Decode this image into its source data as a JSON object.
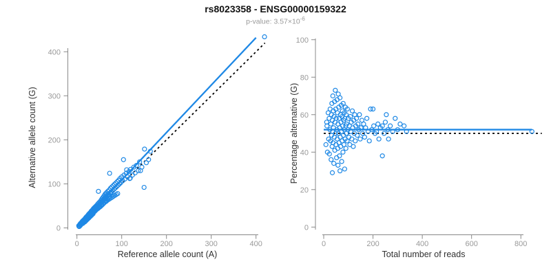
{
  "header": {
    "title": "rs8023358 - ENSG00000159322",
    "p_label": "p-value:",
    "p_mantissa": "3.57×10",
    "p_exponent": "-6"
  },
  "colors": {
    "accent_blue": "#1E88E5",
    "dash_black": "#000000",
    "axis_gray": "#888888",
    "tick_text": "#999999",
    "label_text": "#303030",
    "title_text": "#111111",
    "subtitle_text": "#9a9a9a"
  },
  "chart_data": [
    {
      "id": "left",
      "type": "scatter",
      "xlabel": "Reference allele count (A)",
      "ylabel": "Alternative allele count (G)",
      "xlim": [
        0,
        420
      ],
      "ylim": [
        0,
        435
      ],
      "xticks": [
        0,
        100,
        200,
        300,
        400
      ],
      "yticks": [
        0,
        100,
        200,
        300,
        400
      ],
      "grid": false,
      "marker": "open-circle",
      "legend": "none",
      "lines": [
        {
          "name": "regression-fit",
          "from": [
            0,
            1
          ],
          "to": [
            400,
            432
          ],
          "style": "solid",
          "color": "accent"
        },
        {
          "name": "identity-line",
          "from": [
            4,
            4
          ],
          "to": [
            420,
            420
          ],
          "style": "dashed",
          "color": "black"
        }
      ],
      "points": [
        [
          4,
          5
        ],
        [
          5,
          3
        ],
        [
          6,
          7
        ],
        [
          6,
          4
        ],
        [
          7,
          9
        ],
        [
          8,
          6
        ],
        [
          8,
          10
        ],
        [
          9,
          8
        ],
        [
          9,
          11
        ],
        [
          10,
          12
        ],
        [
          10,
          9
        ],
        [
          11,
          13
        ],
        [
          11,
          12
        ],
        [
          12,
          11
        ],
        [
          12,
          15
        ],
        [
          13,
          10
        ],
        [
          13,
          14
        ],
        [
          14,
          13
        ],
        [
          14,
          17
        ],
        [
          14,
          12
        ],
        [
          15,
          12
        ],
        [
          15,
          16
        ],
        [
          16,
          18
        ],
        [
          16,
          13
        ],
        [
          16,
          15
        ],
        [
          17,
          15
        ],
        [
          17,
          20
        ],
        [
          18,
          14
        ],
        [
          18,
          19
        ],
        [
          19,
          22
        ],
        [
          19,
          16
        ],
        [
          19,
          20
        ],
        [
          20,
          18
        ],
        [
          20,
          24
        ],
        [
          21,
          17
        ],
        [
          21,
          23
        ],
        [
          21,
          21
        ],
        [
          22,
          25
        ],
        [
          22,
          19
        ],
        [
          23,
          21
        ],
        [
          23,
          27
        ],
        [
          23,
          24
        ],
        [
          24,
          20
        ],
        [
          24,
          26
        ],
        [
          25,
          29
        ],
        [
          25,
          22
        ],
        [
          26,
          24
        ],
        [
          26,
          31
        ],
        [
          26,
          27
        ],
        [
          27,
          23
        ],
        [
          27,
          30
        ],
        [
          28,
          33
        ],
        [
          28,
          25
        ],
        [
          28,
          29
        ],
        [
          29,
          27
        ],
        [
          29,
          34
        ],
        [
          30,
          26
        ],
        [
          30,
          32
        ],
        [
          31,
          36
        ],
        [
          31,
          28
        ],
        [
          31,
          33
        ],
        [
          32,
          30
        ],
        [
          32,
          38
        ],
        [
          33,
          29
        ],
        [
          33,
          35
        ],
        [
          33,
          34
        ],
        [
          34,
          40
        ],
        [
          34,
          31
        ],
        [
          35,
          33
        ],
        [
          35,
          41
        ],
        [
          36,
          38
        ],
        [
          36,
          32
        ],
        [
          36,
          37
        ],
        [
          37,
          44
        ],
        [
          37,
          35
        ],
        [
          38,
          36
        ],
        [
          38,
          42
        ],
        [
          38,
          40
        ],
        [
          39,
          46
        ],
        [
          39,
          37
        ],
        [
          40,
          38
        ],
        [
          40,
          45
        ],
        [
          41,
          48
        ],
        [
          41,
          39
        ],
        [
          41,
          43
        ],
        [
          42,
          44
        ],
        [
          42,
          40
        ],
        [
          43,
          50
        ],
        [
          43,
          41
        ],
        [
          44,
          47
        ],
        [
          44,
          42
        ],
        [
          44,
          46
        ],
        [
          45,
          52
        ],
        [
          45,
          43
        ],
        [
          46,
          49
        ],
        [
          46,
          47
        ],
        [
          47,
          55
        ],
        [
          47,
          44
        ],
        [
          48,
          51
        ],
        [
          48,
          83
        ],
        [
          49,
          46
        ],
        [
          49,
          52
        ],
        [
          50,
          58
        ],
        [
          50,
          47
        ],
        [
          51,
          54
        ],
        [
          51,
          50
        ],
        [
          52,
          60
        ],
        [
          52,
          48
        ],
        [
          53,
          56
        ],
        [
          53,
          57
        ],
        [
          54,
          63
        ],
        [
          54,
          50
        ],
        [
          55,
          58
        ],
        [
          55,
          53
        ],
        [
          56,
          66
        ],
        [
          56,
          52
        ],
        [
          57,
          60
        ],
        [
          57,
          62
        ],
        [
          58,
          69
        ],
        [
          58,
          54
        ],
        [
          59,
          62
        ],
        [
          59,
          57
        ],
        [
          60,
          72
        ],
        [
          60,
          56
        ],
        [
          61,
          64
        ],
        [
          61,
          66
        ],
        [
          62,
          75
        ],
        [
          62,
          58
        ],
        [
          63,
          67
        ],
        [
          63,
          61
        ],
        [
          64,
          78
        ],
        [
          65,
          60
        ],
        [
          65,
          70
        ],
        [
          66,
          80
        ],
        [
          66,
          71
        ],
        [
          67,
          62
        ],
        [
          68,
          73
        ],
        [
          68,
          65
        ],
        [
          69,
          83
        ],
        [
          70,
          64
        ],
        [
          70,
          75
        ],
        [
          71,
          76
        ],
        [
          72,
          86
        ],
        [
          72,
          70
        ],
        [
          73,
          124
        ],
        [
          73,
          66
        ],
        [
          74,
          79
        ],
        [
          75,
          90
        ],
        [
          75,
          80
        ],
        [
          76,
          68
        ],
        [
          77,
          82
        ],
        [
          78,
          93
        ],
        [
          79,
          70
        ],
        [
          80,
          85
        ],
        [
          81,
          96
        ],
        [
          82,
          72
        ],
        [
          83,
          88
        ],
        [
          84,
          99
        ],
        [
          85,
          74
        ],
        [
          86,
          91
        ],
        [
          87,
          102
        ],
        [
          88,
          76
        ],
        [
          89,
          94
        ],
        [
          90,
          105
        ],
        [
          91,
          78
        ],
        [
          92,
          97
        ],
        [
          93,
          108
        ],
        [
          95,
          100
        ],
        [
          96,
          112
        ],
        [
          98,
          103
        ],
        [
          100,
          116
        ],
        [
          102,
          107
        ],
        [
          104,
          155
        ],
        [
          105,
          120
        ],
        [
          107,
          111
        ],
        [
          110,
          124
        ],
        [
          111,
          132
        ],
        [
          113,
          116
        ],
        [
          116,
          128
        ],
        [
          118,
          112
        ],
        [
          119,
          113
        ],
        [
          120,
          133
        ],
        [
          124,
          120
        ],
        [
          127,
          138
        ],
        [
          130,
          125
        ],
        [
          133,
          142
        ],
        [
          137,
          130
        ],
        [
          140,
          150
        ],
        [
          142,
          130
        ],
        [
          145,
          138
        ],
        [
          150,
          92
        ],
        [
          151,
          179
        ],
        [
          155,
          148
        ],
        [
          160,
          155
        ],
        [
          164,
          174
        ],
        [
          419,
          434
        ]
      ]
    },
    {
      "id": "right",
      "type": "scatter",
      "xlabel": "Total number of reads",
      "ylabel": "Percentage alternative (G)",
      "xlim": [
        0,
        880
      ],
      "ylim": [
        0,
        100
      ],
      "xticks": [
        0,
        200,
        400,
        600,
        800
      ],
      "yticks": [
        0,
        20,
        40,
        60,
        80,
        100
      ],
      "grid": false,
      "marker": "open-circle",
      "legend": "none",
      "lines": [
        {
          "name": "mean-percentage-line",
          "from": [
            0,
            52
          ],
          "to": [
            845,
            52
          ],
          "style": "solid",
          "color": "accent"
        },
        {
          "name": "expected-50pct-line",
          "from": [
            0,
            50
          ],
          "to": [
            885,
            50
          ],
          "style": "dashed",
          "color": "black"
        }
      ],
      "points": [
        [
          9,
          44
        ],
        [
          12,
          56
        ],
        [
          13,
          54
        ],
        [
          15,
          40
        ],
        [
          18,
          61
        ],
        [
          20,
          47
        ],
        [
          22,
          58
        ],
        [
          23,
          39
        ],
        [
          25,
          52
        ],
        [
          26,
          63
        ],
        [
          28,
          46
        ],
        [
          29,
          55
        ],
        [
          30,
          36
        ],
        [
          31,
          60
        ],
        [
          32,
          49
        ],
        [
          33,
          66
        ],
        [
          34,
          43
        ],
        [
          35,
          57
        ],
        [
          35,
          29
        ],
        [
          36,
          51
        ],
        [
          37,
          70
        ],
        [
          38,
          45
        ],
        [
          39,
          62
        ],
        [
          40,
          53
        ],
        [
          41,
          34
        ],
        [
          42,
          59
        ],
        [
          43,
          48
        ],
        [
          44,
          67
        ],
        [
          45,
          41
        ],
        [
          46,
          56
        ],
        [
          47,
          73
        ],
        [
          48,
          50
        ],
        [
          49,
          63
        ],
        [
          50,
          44
        ],
        [
          51,
          58
        ],
        [
          52,
          37
        ],
        [
          53,
          52
        ],
        [
          54,
          68
        ],
        [
          55,
          47
        ],
        [
          56,
          61
        ],
        [
          57,
          42
        ],
        [
          58,
          55
        ],
        [
          58,
          33
        ],
        [
          59,
          71
        ],
        [
          60,
          50
        ],
        [
          61,
          64
        ],
        [
          62,
          45
        ],
        [
          63,
          58
        ],
        [
          64,
          38
        ],
        [
          65,
          53
        ],
        [
          66,
          69
        ],
        [
          66,
          30
        ],
        [
          67,
          48
        ],
        [
          68,
          60
        ],
        [
          69,
          43
        ],
        [
          70,
          56
        ],
        [
          71,
          65
        ],
        [
          72,
          51
        ],
        [
          73,
          35
        ],
        [
          74,
          59
        ],
        [
          75,
          46
        ],
        [
          76,
          62
        ],
        [
          77,
          54
        ],
        [
          78,
          40
        ],
        [
          79,
          66
        ],
        [
          80,
          49
        ],
        [
          81,
          57
        ],
        [
          82,
          44
        ],
        [
          83,
          61
        ],
        [
          84,
          52
        ],
        [
          85,
          31
        ],
        [
          86,
          58
        ],
        [
          87,
          47
        ],
        [
          88,
          64
        ],
        [
          89,
          54
        ],
        [
          90,
          42
        ],
        [
          91,
          60
        ],
        [
          92,
          50
        ],
        [
          93,
          55
        ],
        [
          95,
          46
        ],
        [
          96,
          63
        ],
        [
          98,
          52
        ],
        [
          100,
          58
        ],
        [
          102,
          48
        ],
        [
          104,
          54
        ],
        [
          106,
          44
        ],
        [
          108,
          59
        ],
        [
          110,
          51
        ],
        [
          112,
          56
        ],
        [
          114,
          47
        ],
        [
          116,
          62
        ],
        [
          118,
          53
        ],
        [
          120,
          43
        ],
        [
          122,
          57
        ],
        [
          124,
          50
        ],
        [
          126,
          60
        ],
        [
          128,
          46
        ],
        [
          130,
          54
        ],
        [
          133,
          58
        ],
        [
          136,
          49
        ],
        [
          139,
          55
        ],
        [
          142,
          52
        ],
        [
          145,
          60
        ],
        [
          148,
          47
        ],
        [
          151,
          53
        ],
        [
          155,
          57
        ],
        [
          158,
          50
        ],
        [
          162,
          55
        ],
        [
          166,
          48
        ],
        [
          170,
          53
        ],
        [
          175,
          58
        ],
        [
          180,
          51
        ],
        [
          185,
          46
        ],
        [
          190,
          63
        ],
        [
          195,
          52
        ],
        [
          200,
          63
        ],
        [
          203,
          54
        ],
        [
          208,
          50
        ],
        [
          214,
          51
        ],
        [
          220,
          55
        ],
        [
          224,
          47
        ],
        [
          230,
          53
        ],
        [
          238,
          54
        ],
        [
          238,
          38
        ],
        [
          245,
          50
        ],
        [
          250,
          56
        ],
        [
          254,
          60
        ],
        [
          260,
          52
        ],
        [
          263,
          47
        ],
        [
          270,
          54
        ],
        [
          280,
          51
        ],
        [
          290,
          58
        ],
        [
          300,
          52
        ],
        [
          310,
          55
        ],
        [
          326,
          54
        ],
        [
          336,
          51
        ],
        [
          845,
          51
        ]
      ]
    }
  ]
}
